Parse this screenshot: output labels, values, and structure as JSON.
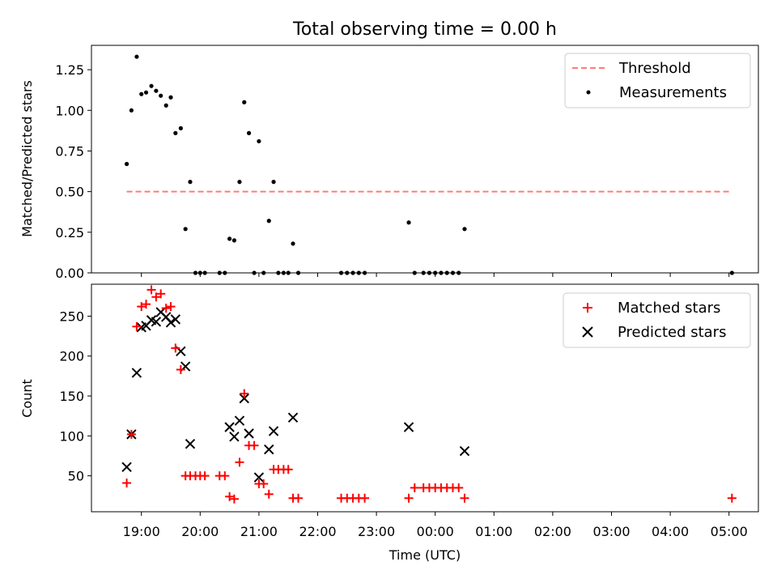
{
  "chart_data": [
    {
      "type": "scatter",
      "title": "Total observing time = 0.00 h",
      "ylabel": "Matched/Predicted stars",
      "xlabel": "",
      "xlim_hours": [
        18.15,
        29.5
      ],
      "ylim": [
        0,
        1.4
      ],
      "yticks": [
        0.0,
        0.25,
        0.5,
        0.75,
        1.0,
        1.25
      ],
      "ytick_labels": [
        "0.00",
        "0.25",
        "0.50",
        "0.75",
        "1.00",
        "1.25"
      ],
      "xticks_hours": [
        19,
        20,
        21,
        22,
        23,
        24,
        25,
        26,
        27,
        28,
        29
      ],
      "legend_position": "upper right",
      "threshold": {
        "name": "Threshold",
        "y": 0.5,
        "x_start": 18.75,
        "x_end": 29.05,
        "color": "#ff7b7b"
      },
      "series": [
        {
          "name": "Measurements",
          "marker": "dot",
          "color": "#000000",
          "x": [
            18.75,
            18.83,
            18.92,
            19.0,
            19.08,
            19.17,
            19.25,
            19.33,
            19.42,
            19.5,
            19.58,
            19.67,
            19.75,
            19.83,
            19.92,
            20.0,
            20.08,
            20.33,
            20.42,
            20.5,
            20.58,
            20.67,
            20.75,
            20.83,
            20.92,
            21.0,
            21.08,
            21.17,
            21.25,
            21.33,
            21.42,
            21.5,
            21.58,
            21.67,
            22.4,
            22.5,
            22.6,
            22.7,
            22.8,
            23.55,
            23.65,
            23.8,
            23.9,
            24.0,
            24.1,
            24.2,
            24.3,
            24.4,
            24.5,
            29.05
          ],
          "y": [
            0.67,
            1.0,
            1.33,
            1.1,
            1.11,
            1.15,
            1.12,
            1.09,
            1.03,
            1.08,
            0.86,
            0.89,
            0.27,
            0.56,
            0.0,
            0.0,
            0.0,
            0.0,
            0.0,
            0.21,
            0.2,
            0.56,
            1.05,
            0.86,
            0.0,
            0.81,
            0.0,
            0.32,
            0.56,
            0.0,
            0.0,
            0.0,
            0.18,
            0.0,
            0.0,
            0.0,
            0.0,
            0.0,
            0.0,
            0.31,
            0.0,
            0.0,
            0.0,
            0.0,
            0.0,
            0.0,
            0.0,
            0.0,
            0.27,
            0.0
          ]
        }
      ]
    },
    {
      "type": "scatter",
      "title": "",
      "xlabel": "Time (UTC)",
      "ylabel": "Count",
      "xlim_hours": [
        18.15,
        29.5
      ],
      "ylim": [
        5,
        290
      ],
      "yticks": [
        50,
        100,
        150,
        200,
        250
      ],
      "ytick_labels": [
        "50",
        "100",
        "150",
        "200",
        "250"
      ],
      "xticks_hours": [
        19,
        20,
        21,
        22,
        23,
        24,
        25,
        26,
        27,
        28,
        29
      ],
      "xtick_labels": [
        "19:00",
        "20:00",
        "21:00",
        "22:00",
        "23:00",
        "00:00",
        "01:00",
        "02:00",
        "03:00",
        "04:00",
        "05:00"
      ],
      "legend_position": "upper right",
      "series": [
        {
          "name": "Matched stars",
          "marker": "plus",
          "color": "#ff0000",
          "x": [
            18.75,
            18.83,
            18.92,
            19.0,
            19.08,
            19.17,
            19.25,
            19.33,
            19.42,
            19.5,
            19.58,
            19.67,
            19.75,
            19.83,
            19.92,
            20.0,
            20.08,
            20.33,
            20.42,
            20.5,
            20.58,
            20.67,
            20.75,
            20.83,
            20.92,
            21.0,
            21.08,
            21.17,
            21.25,
            21.33,
            21.42,
            21.5,
            21.58,
            21.67,
            22.4,
            22.5,
            22.6,
            22.7,
            22.8,
            23.55,
            23.65,
            23.8,
            23.9,
            24.0,
            24.1,
            24.2,
            24.3,
            24.4,
            24.5,
            29.05
          ],
          "y": [
            41,
            102,
            237,
            262,
            265,
            283,
            274,
            278,
            260,
            262,
            210,
            183,
            50,
            50,
            50,
            50,
            50,
            50,
            50,
            24,
            21,
            67,
            153,
            88,
            88,
            40,
            40,
            27,
            58,
            58,
            58,
            58,
            22,
            22,
            22,
            22,
            22,
            22,
            22,
            22,
            35,
            35,
            35,
            35,
            35,
            35,
            35,
            35,
            22,
            22
          ]
        },
        {
          "name": "Predicted stars",
          "marker": "x",
          "color": "#000000",
          "x": [
            18.75,
            18.83,
            18.92,
            19.0,
            19.08,
            19.17,
            19.25,
            19.33,
            19.42,
            19.5,
            19.58,
            19.67,
            19.75,
            19.83,
            20.5,
            20.58,
            20.67,
            20.75,
            20.83,
            21.0,
            21.17,
            21.25,
            21.58,
            23.55,
            24.5
          ],
          "y": [
            61,
            102,
            179,
            236,
            238,
            245,
            243,
            255,
            249,
            242,
            246,
            206,
            187,
            90,
            111,
            99,
            119,
            147,
            103,
            48,
            83,
            106,
            123,
            111,
            81
          ]
        }
      ]
    }
  ]
}
